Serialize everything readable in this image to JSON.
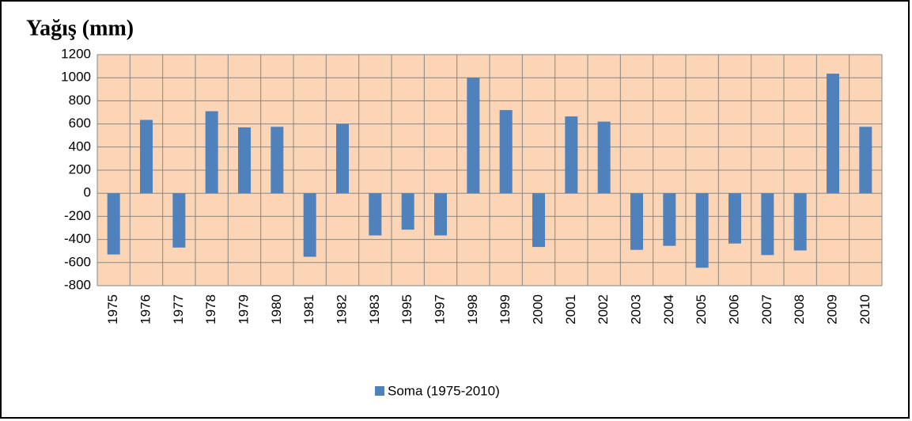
{
  "chart_data": {
    "type": "bar",
    "title": "Yağış (mm)",
    "categories": [
      "1975",
      "1976",
      "1977",
      "1978",
      "1979",
      "1980",
      "1981",
      "1982",
      "1983",
      "1995",
      "1997",
      "1998",
      "1999",
      "2000",
      "2001",
      "2002",
      "2003",
      "2004",
      "2005",
      "2006",
      "2007",
      "2008",
      "2009",
      "2010"
    ],
    "series": [
      {
        "name": "Soma (1975-2010)",
        "color": "#4f81bd",
        "values": [
          -530,
          635,
          -470,
          710,
          570,
          575,
          -550,
          600,
          -365,
          -315,
          -365,
          1000,
          720,
          -465,
          665,
          620,
          -490,
          -455,
          -645,
          -435,
          -535,
          -495,
          1035,
          575
        ]
      }
    ],
    "ylim": [
      -800,
      1200
    ],
    "yticks": [
      -800,
      -600,
      -400,
      -200,
      0,
      200,
      400,
      600,
      800,
      1000,
      1200
    ],
    "grid": true,
    "legend": "bottom"
  }
}
